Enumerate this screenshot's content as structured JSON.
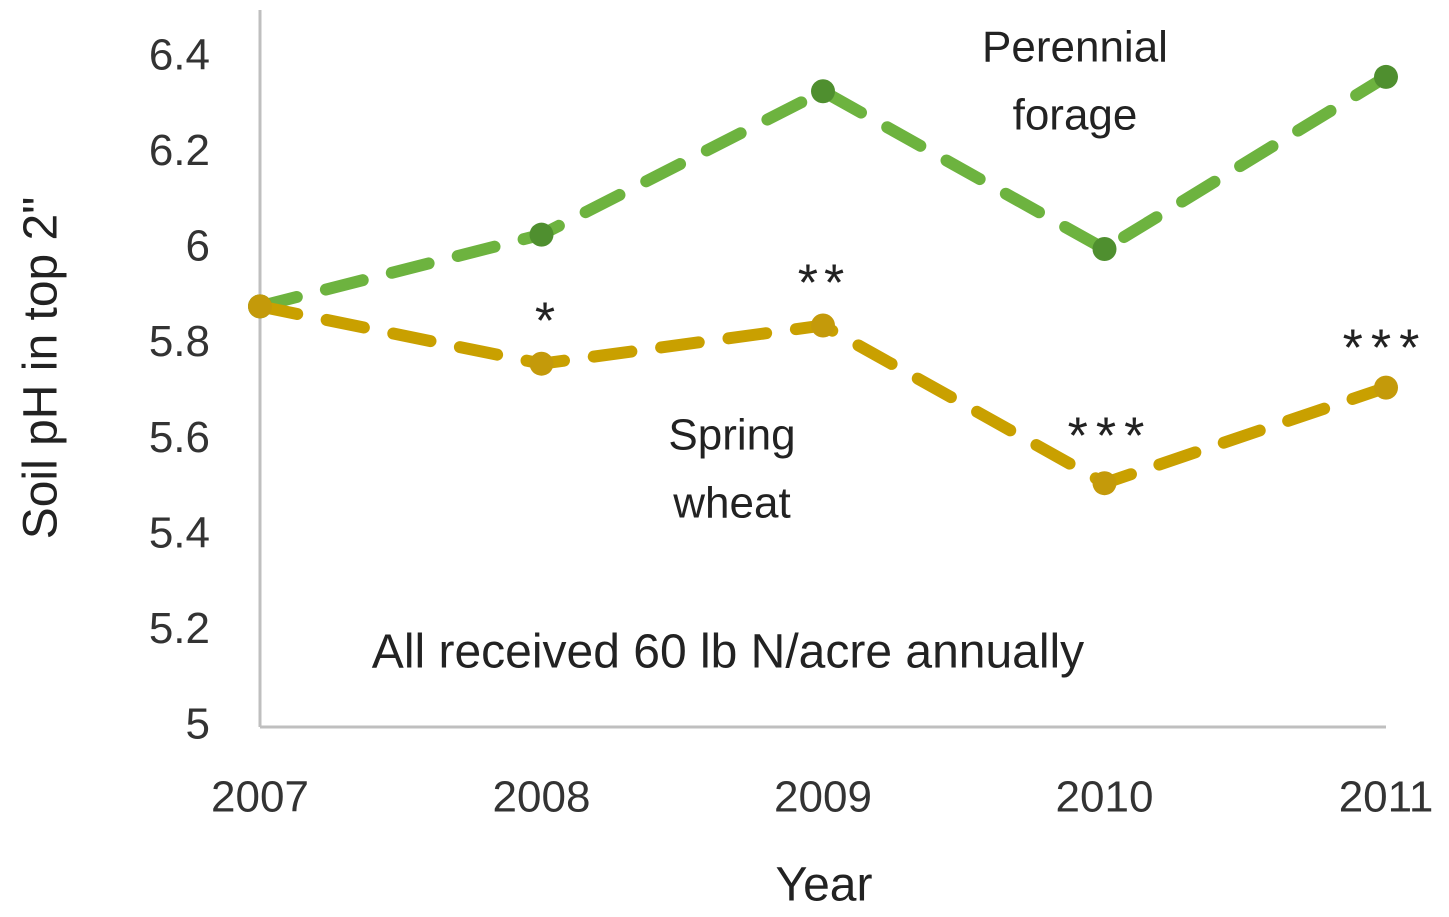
{
  "chart_data": {
    "type": "line",
    "x_label": "Year",
    "y_label": "Soil pH in top 2\"",
    "categories": [
      "2007",
      "2008",
      "2009",
      "2010",
      "2011"
    ],
    "series": [
      {
        "name": "Perennial forage",
        "color": "#6db33f",
        "marker_color": "#4f8f2f",
        "values": [
          5.88,
          6.03,
          6.33,
          6.0,
          6.36
        ]
      },
      {
        "name": "Spring wheat",
        "color": "#c9a000",
        "marker_color": "#c49a0a",
        "values": [
          5.88,
          5.76,
          5.84,
          5.51,
          5.71
        ]
      }
    ],
    "ylim": [
      5,
      6.5
    ],
    "yticks": [
      5,
      5.2,
      5.4,
      5.6,
      5.8,
      6,
      6.2,
      6.4
    ],
    "grid": false,
    "annotations": [
      [
        "Perennial",
        "forage"
      ],
      [
        "Spring",
        "wheat"
      ],
      [
        "All received 60 lb N/acre annually"
      ],
      [
        "*"
      ],
      [
        "**"
      ],
      [
        "***"
      ],
      [
        "***"
      ]
    ]
  }
}
